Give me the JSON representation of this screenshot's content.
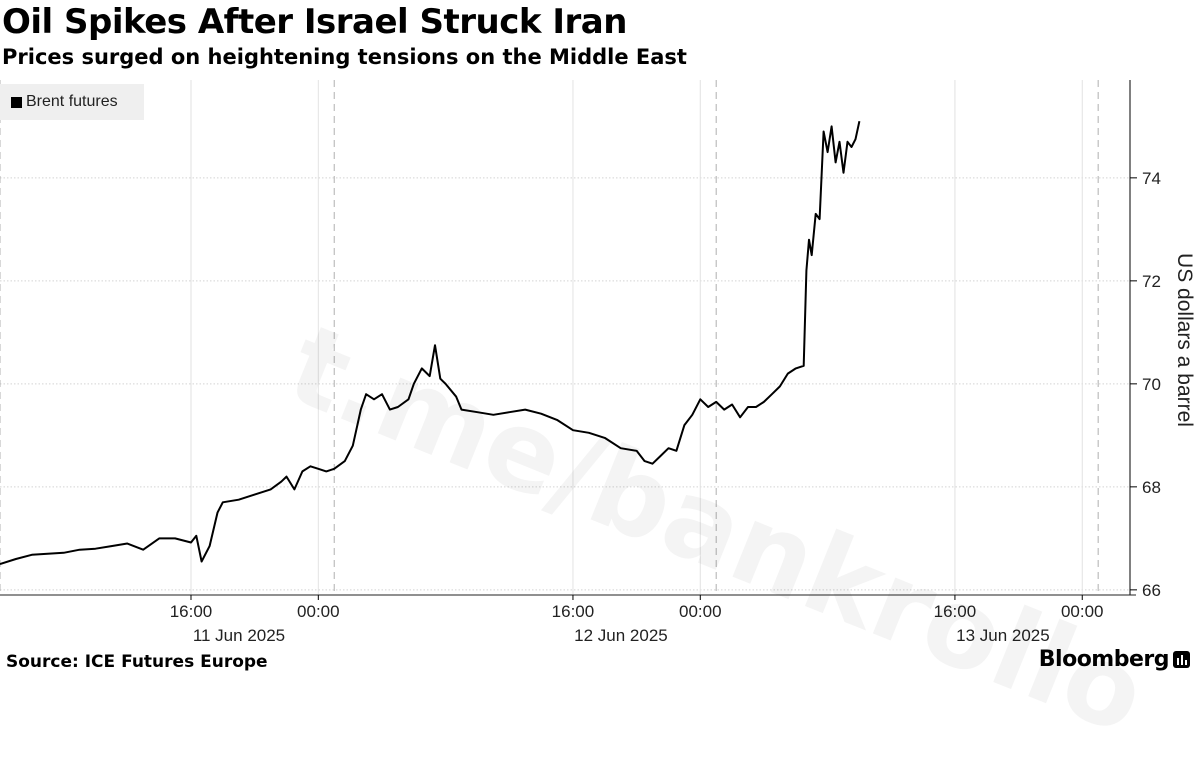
{
  "title": "Oil Spikes After Israel Struck Iran",
  "subtitle": "Prices surged on heightening tensions on the Middle East",
  "source": "Source: ICE Futures Europe",
  "brand": "Bloomberg",
  "watermark": "t.me/bankrollo",
  "chart_data": {
    "type": "line",
    "title": "Oil Spikes After Israel Struck Iran",
    "subtitle": "Prices surged on heightening tensions on the Middle East",
    "ylabel": "US dollars a barrel",
    "xlabel": "",
    "ylim": [
      65.9,
      75.9
    ],
    "y_ticks": [
      66,
      68,
      70,
      72,
      74
    ],
    "x_range": [
      "2025-06-11T04:00",
      "2025-06-14T03:00"
    ],
    "x_ticks": [
      {
        "time": "2025-06-11T16:00",
        "label": "16:00",
        "date_label": "11 Jun 2025"
      },
      {
        "time": "2025-06-12T00:00",
        "label": "00:00",
        "date_label": ""
      },
      {
        "time": "2025-06-12T16:00",
        "label": "16:00",
        "date_label": "12 Jun 2025"
      },
      {
        "time": "2025-06-13T00:00",
        "label": "00:00",
        "date_label": ""
      },
      {
        "time": "2025-06-13T16:00",
        "label": "16:00",
        "date_label": "13 Jun 2025"
      },
      {
        "time": "2025-06-14T00:00",
        "label": "00:00",
        "date_label": ""
      }
    ],
    "session_breaks": [
      "2025-06-12T01:00",
      "2025-06-13T01:00",
      "2025-06-14T01:00"
    ],
    "grid": true,
    "legend_position": "top-left",
    "series": [
      {
        "name": "Brent futures",
        "color": "#000000",
        "points": [
          [
            "2025-06-11T04:00",
            66.5
          ],
          [
            "2025-06-11T05:00",
            66.6
          ],
          [
            "2025-06-11T06:00",
            66.68
          ],
          [
            "2025-06-11T07:00",
            66.7
          ],
          [
            "2025-06-11T08:00",
            66.72
          ],
          [
            "2025-06-11T09:00",
            66.78
          ],
          [
            "2025-06-11T10:00",
            66.8
          ],
          [
            "2025-06-11T11:00",
            66.85
          ],
          [
            "2025-06-11T12:00",
            66.9
          ],
          [
            "2025-06-11T13:00",
            66.78
          ],
          [
            "2025-06-11T14:00",
            67.0
          ],
          [
            "2025-06-11T15:00",
            67.0
          ],
          [
            "2025-06-11T16:00",
            66.92
          ],
          [
            "2025-06-11T16:20",
            67.05
          ],
          [
            "2025-06-11T16:40",
            66.55
          ],
          [
            "2025-06-11T17:10",
            66.85
          ],
          [
            "2025-06-11T17:40",
            67.5
          ],
          [
            "2025-06-11T18:00",
            67.7
          ],
          [
            "2025-06-11T19:00",
            67.75
          ],
          [
            "2025-06-11T20:00",
            67.85
          ],
          [
            "2025-06-11T21:00",
            67.95
          ],
          [
            "2025-06-11T21:40",
            68.1
          ],
          [
            "2025-06-11T22:00",
            68.2
          ],
          [
            "2025-06-11T22:30",
            67.95
          ],
          [
            "2025-06-11T23:00",
            68.3
          ],
          [
            "2025-06-11T23:30",
            68.4
          ],
          [
            "2025-06-12T00:00",
            68.35
          ],
          [
            "2025-06-12T00:30",
            68.3
          ],
          [
            "2025-06-12T01:00",
            68.35
          ],
          [
            "2025-06-12T01:40",
            68.5
          ],
          [
            "2025-06-12T02:10",
            68.8
          ],
          [
            "2025-06-12T02:40",
            69.5
          ],
          [
            "2025-06-12T03:00",
            69.8
          ],
          [
            "2025-06-12T03:30",
            69.7
          ],
          [
            "2025-06-12T04:00",
            69.8
          ],
          [
            "2025-06-12T04:30",
            69.5
          ],
          [
            "2025-06-12T05:00",
            69.55
          ],
          [
            "2025-06-12T05:40",
            69.7
          ],
          [
            "2025-06-12T06:00",
            70.0
          ],
          [
            "2025-06-12T06:30",
            70.3
          ],
          [
            "2025-06-12T07:00",
            70.15
          ],
          [
            "2025-06-12T07:20",
            70.75
          ],
          [
            "2025-06-12T07:40",
            70.1
          ],
          [
            "2025-06-12T08:00",
            70.0
          ],
          [
            "2025-06-12T08:40",
            69.75
          ],
          [
            "2025-06-12T09:00",
            69.5
          ],
          [
            "2025-06-12T10:00",
            69.45
          ],
          [
            "2025-06-12T11:00",
            69.4
          ],
          [
            "2025-06-12T12:00",
            69.45
          ],
          [
            "2025-06-12T13:00",
            69.5
          ],
          [
            "2025-06-12T14:00",
            69.42
          ],
          [
            "2025-06-12T15:00",
            69.3
          ],
          [
            "2025-06-12T16:00",
            69.1
          ],
          [
            "2025-06-12T17:00",
            69.05
          ],
          [
            "2025-06-12T18:00",
            68.95
          ],
          [
            "2025-06-12T19:00",
            68.75
          ],
          [
            "2025-06-12T20:00",
            68.7
          ],
          [
            "2025-06-12T20:30",
            68.5
          ],
          [
            "2025-06-12T21:00",
            68.45
          ],
          [
            "2025-06-12T21:30",
            68.6
          ],
          [
            "2025-06-12T22:00",
            68.75
          ],
          [
            "2025-06-12T22:30",
            68.7
          ],
          [
            "2025-06-12T23:00",
            69.2
          ],
          [
            "2025-06-12T23:30",
            69.4
          ],
          [
            "2025-06-13T00:00",
            69.7
          ],
          [
            "2025-06-13T00:30",
            69.55
          ],
          [
            "2025-06-13T01:00",
            69.65
          ],
          [
            "2025-06-13T01:30",
            69.5
          ],
          [
            "2025-06-13T02:00",
            69.6
          ],
          [
            "2025-06-13T02:30",
            69.35
          ],
          [
            "2025-06-13T03:00",
            69.55
          ],
          [
            "2025-06-13T03:30",
            69.55
          ],
          [
            "2025-06-13T04:00",
            69.65
          ],
          [
            "2025-06-13T04:30",
            69.8
          ],
          [
            "2025-06-13T05:00",
            69.95
          ],
          [
            "2025-06-13T05:30",
            70.2
          ],
          [
            "2025-06-13T06:00",
            70.3
          ],
          [
            "2025-06-13T06:30",
            70.35
          ],
          [
            "2025-06-13T06:40",
            72.2
          ],
          [
            "2025-06-13T06:50",
            72.8
          ],
          [
            "2025-06-13T07:00",
            72.5
          ],
          [
            "2025-06-13T07:15",
            73.3
          ],
          [
            "2025-06-13T07:30",
            73.2
          ],
          [
            "2025-06-13T07:45",
            74.9
          ],
          [
            "2025-06-13T08:00",
            74.5
          ],
          [
            "2025-06-13T08:15",
            75.0
          ],
          [
            "2025-06-13T08:30",
            74.3
          ],
          [
            "2025-06-13T08:45",
            74.7
          ],
          [
            "2025-06-13T09:00",
            74.1
          ],
          [
            "2025-06-13T09:15",
            74.7
          ],
          [
            "2025-06-13T09:30",
            74.6
          ],
          [
            "2025-06-13T09:45",
            74.75
          ],
          [
            "2025-06-13T10:00",
            75.1
          ]
        ]
      }
    ]
  }
}
